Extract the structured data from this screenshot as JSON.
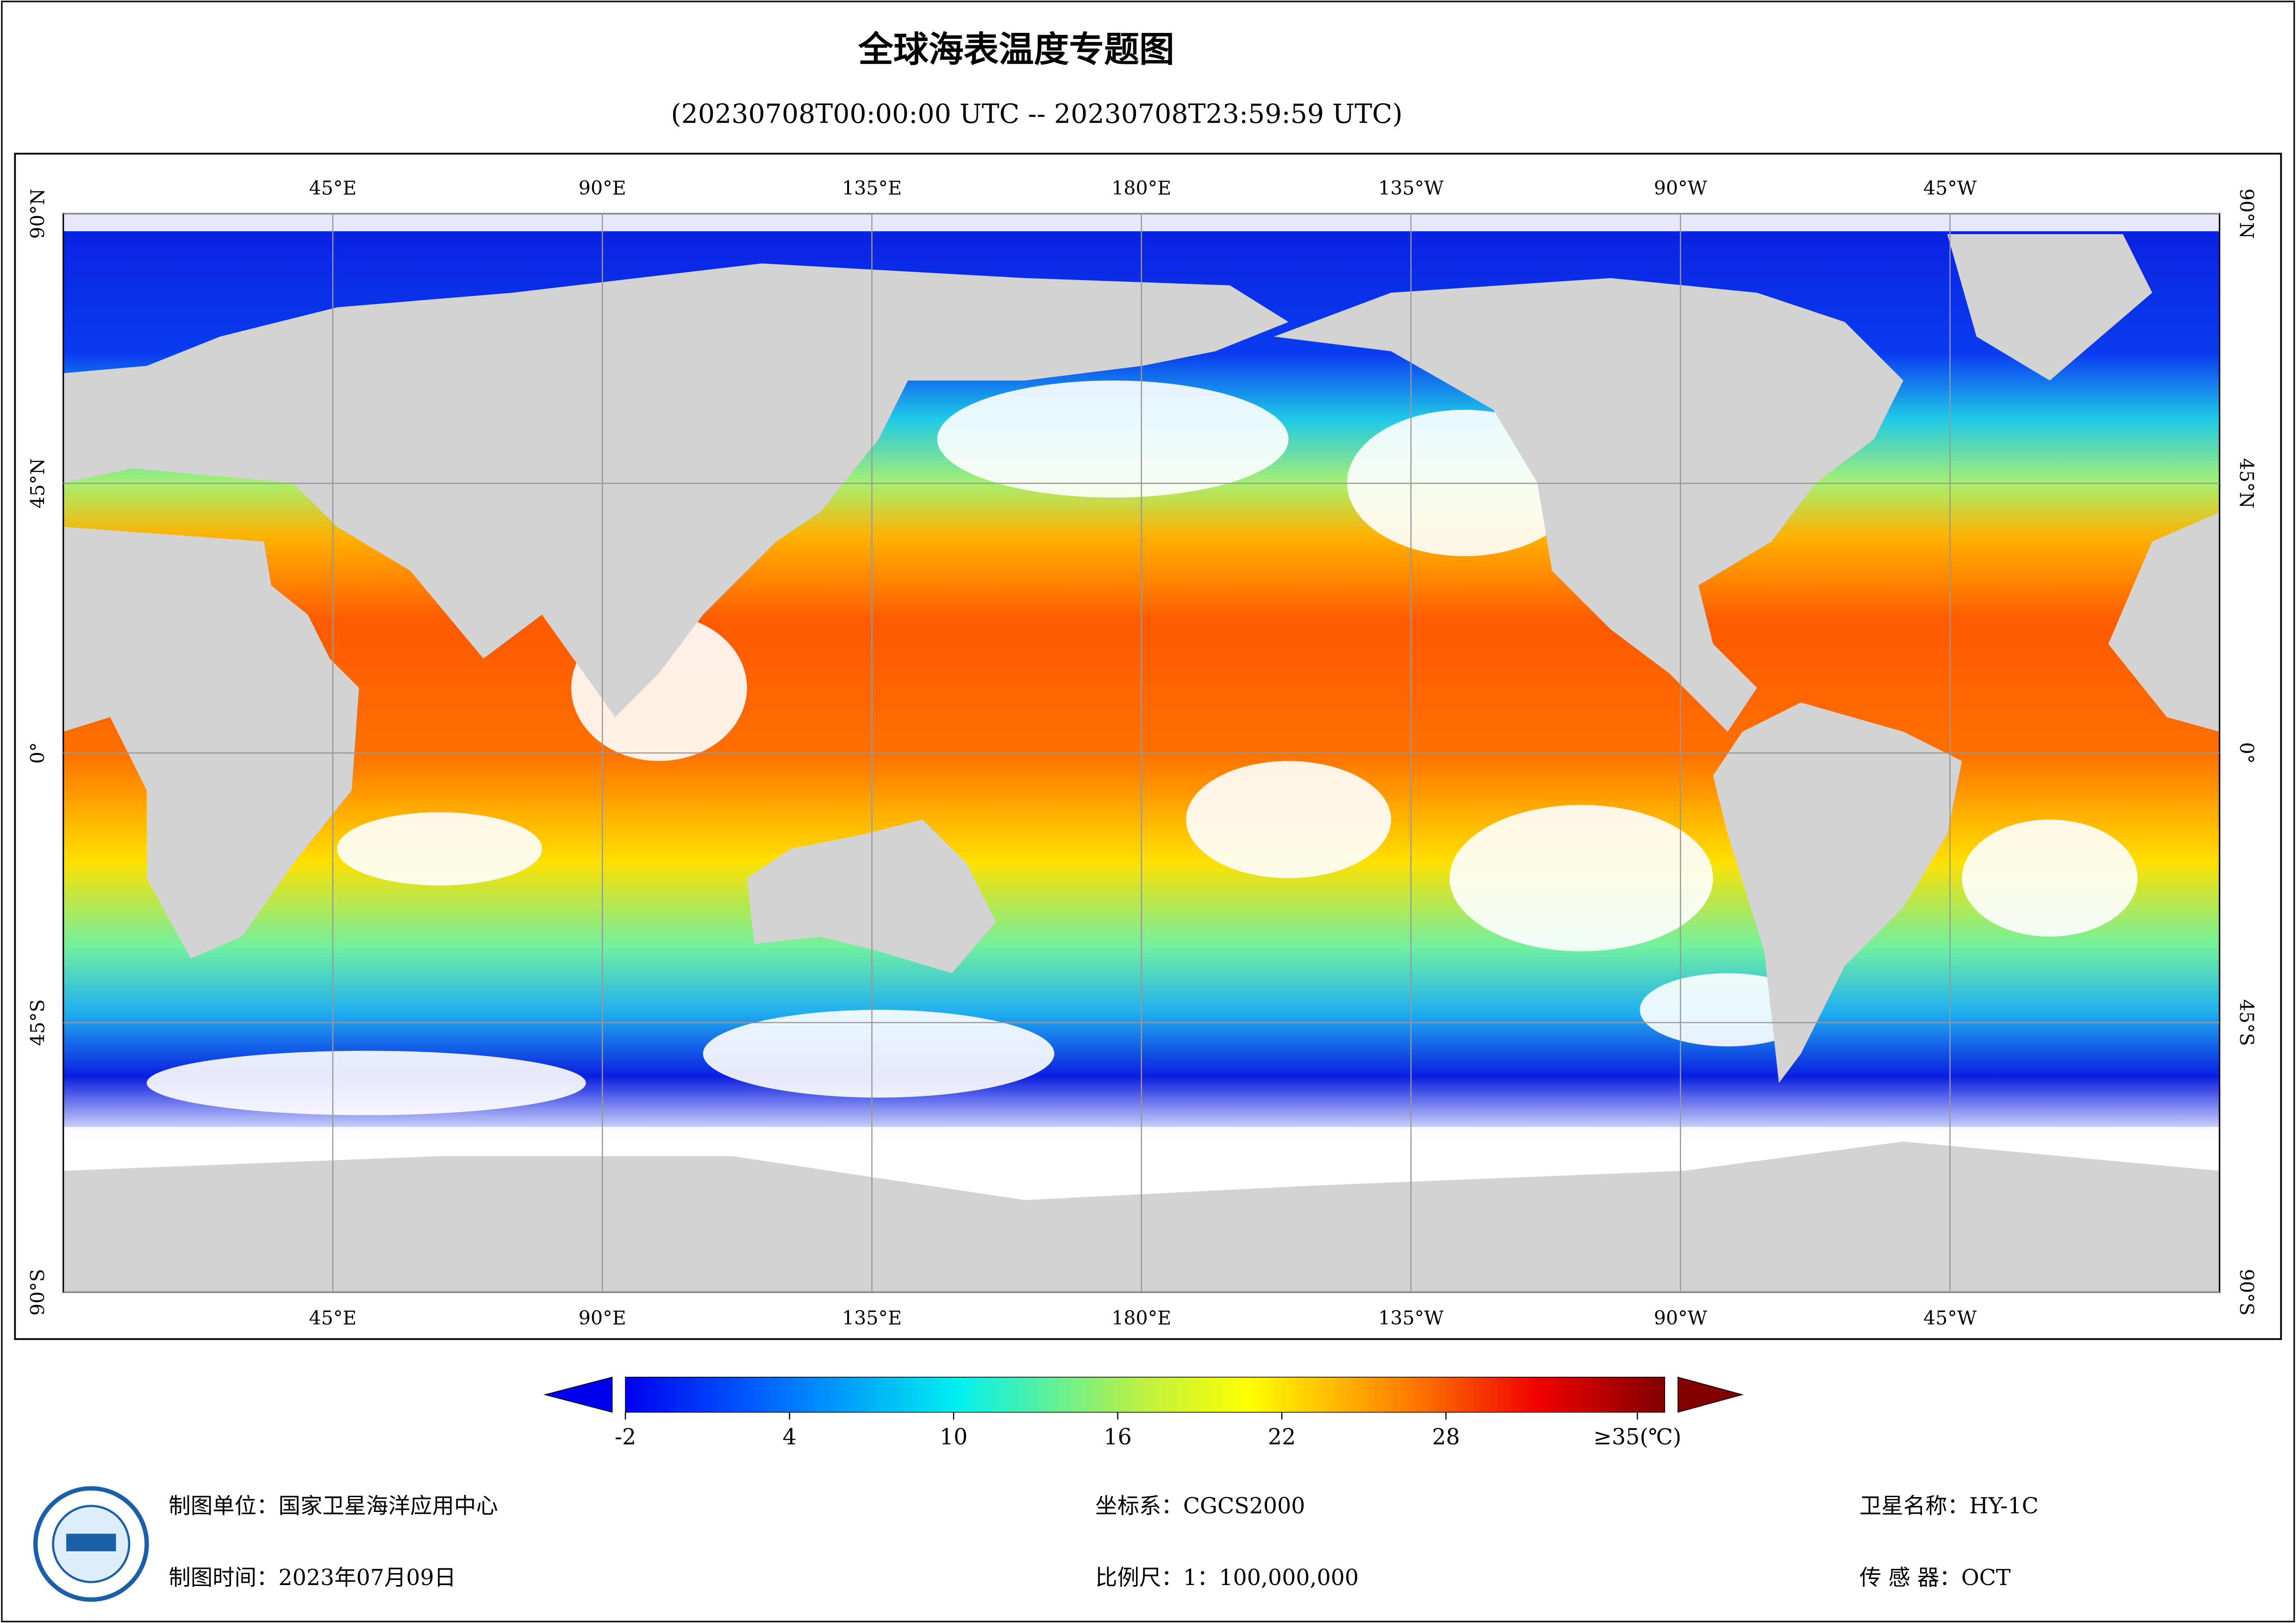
{
  "header": {
    "title": "全球海表温度专题图",
    "subtitle": "(20230708T00:00:00 UTC -- 20230708T23:59:59 UTC)"
  },
  "map": {
    "lon_range": [
      0,
      360
    ],
    "lat_range": [
      90,
      -90
    ],
    "lon_ticks": [
      {
        "value": 45,
        "label": "45°E"
      },
      {
        "value": 90,
        "label": "90°E"
      },
      {
        "value": 135,
        "label": "135°E"
      },
      {
        "value": 180,
        "label": "180°E"
      },
      {
        "value": 225,
        "label": "135°W"
      },
      {
        "value": 270,
        "label": "90°W"
      },
      {
        "value": 315,
        "label": "45°W"
      }
    ],
    "lat_ticks": [
      {
        "value": 90,
        "label": "90°N"
      },
      {
        "value": 45,
        "label": "45°N"
      },
      {
        "value": 0,
        "label": "0°"
      },
      {
        "value": -45,
        "label": "45°S"
      },
      {
        "value": -90,
        "label": "90°S"
      }
    ]
  },
  "colorbar": {
    "range": [
      -2,
      36
    ],
    "ticks": [
      -2,
      4,
      10,
      16,
      22,
      28,
      {
        "value": 35,
        "label": "≥35(℃)"
      }
    ]
  },
  "footer": {
    "unit": "制图单位：国家卫星海洋应用中心",
    "time": "制图时间：2023年07月09日",
    "crs": "坐标系：CGCS2000",
    "scale": "比例尺：1：100,000,000",
    "satellite": "卫星名称：HY-1C",
    "sensor": "传 感 器：OCT"
  }
}
